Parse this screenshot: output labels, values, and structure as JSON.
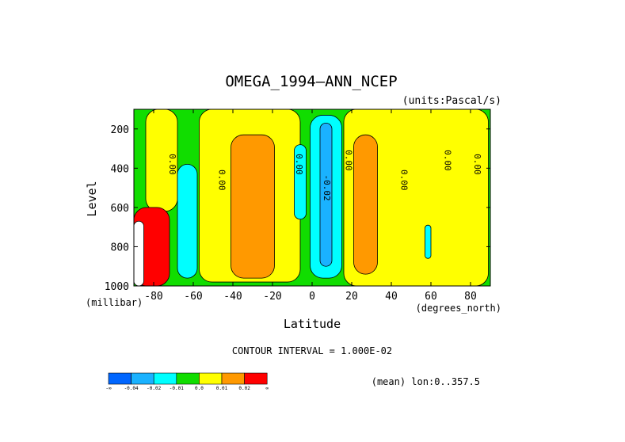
{
  "chart_data": {
    "type": "heatmap",
    "subtype": "filled-contour",
    "title": "OMEGA_1994—ANN_NCEP",
    "units_label": "(units:Pascal/s)",
    "xlabel": "Latitude",
    "ylabel": "Level",
    "x_unit_label": "(degrees_north)",
    "y_unit_label": "(millibar)",
    "xlim": [
      -90,
      90
    ],
    "ylim": [
      1000,
      100
    ],
    "y_inverted": true,
    "x_ticks": [
      -80,
      -60,
      -40,
      -20,
      0,
      20,
      40,
      60,
      80
    ],
    "x_tick_labels": [
      "-80",
      "-60",
      "-40",
      "-20",
      "0",
      "20",
      "40",
      "60",
      "80"
    ],
    "y_ticks": [
      200,
      400,
      600,
      800,
      1000
    ],
    "y_tick_labels": [
      "200",
      "400",
      "600",
      "800",
      "1000"
    ],
    "contour_interval_text": "CONTOUR INTERVAL = 1.000E-02",
    "footer_text": "(mean) lon:0..357.5",
    "contour_labels": [
      {
        "text": "0.00",
        "lat": -72,
        "level": 380
      },
      {
        "text": "0.00",
        "lat": -47,
        "level": 460
      },
      {
        "text": "0.00",
        "lat": -8,
        "level": 380
      },
      {
        "text": "0.00",
        "lat": 17,
        "level": 360
      },
      {
        "text": "-0.02",
        "lat": 6,
        "level": 500
      },
      {
        "text": "0.00",
        "lat": 45,
        "level": 460
      },
      {
        "text": "0.00",
        "lat": 67,
        "level": 360
      },
      {
        "text": "0.00",
        "lat": 82,
        "level": 380
      }
    ],
    "colorbar": {
      "bins": [
        {
          "color": "#0066ff",
          "label": "-∞"
        },
        {
          "color": "#1ab2ff",
          "label": "-0.04"
        },
        {
          "color": "#00ffff",
          "label": "-0.02"
        },
        {
          "color": "#11dd00",
          "label": "-0.01"
        },
        {
          "color": "#ffff00",
          "label": "0.0"
        },
        {
          "color": "#ff9900",
          "label": "0.01"
        },
        {
          "color": "#ff0000",
          "label": "0.02"
        }
      ],
      "end_label": "∞"
    },
    "regions": [
      {
        "value_range": "-0.01..0.0",
        "color": "#11dd00",
        "lat": [
          -90,
          90
        ],
        "level": [
          100,
          1000
        ]
      },
      {
        "value_range": "0.0..0.01",
        "color": "#ffff00",
        "lat": [
          -84,
          -68
        ],
        "level": [
          100,
          620
        ]
      },
      {
        "value_range": "-0.02..-0.01",
        "color": "#00ffff",
        "lat": [
          -68,
          -58
        ],
        "level": [
          380,
          960
        ]
      },
      {
        "value_range": "0.0..0.01",
        "color": "#ffff00",
        "lat": [
          -57,
          -6
        ],
        "level": [
          100,
          980
        ]
      },
      {
        "value_range": "0.01..0.02",
        "color": "#ff9900",
        "lat": [
          -41,
          -19
        ],
        "level": [
          230,
          960
        ]
      },
      {
        "value_range": "-0.02..-0.01",
        "color": "#00ffff",
        "lat": [
          -9,
          -3
        ],
        "level": [
          280,
          660
        ]
      },
      {
        "value_range": "-0.02..-0.01",
        "color": "#00ffff",
        "lat": [
          -1,
          15
        ],
        "level": [
          130,
          960
        ]
      },
      {
        "value_range": "-0.04..-0.02",
        "color": "#1ab2ff",
        "lat": [
          4,
          10
        ],
        "level": [
          170,
          900
        ]
      },
      {
        "value_range": "0.0..0.01",
        "color": "#ffff00",
        "lat": [
          16,
          89
        ],
        "level": [
          100,
          1000
        ]
      },
      {
        "value_range": "0.01..0.02",
        "color": "#ff9900",
        "lat": [
          21,
          33
        ],
        "level": [
          230,
          940
        ]
      },
      {
        "value_range": "-0.02..-0.01",
        "color": "#00ffff",
        "lat": [
          57,
          60
        ],
        "level": [
          690,
          860
        ]
      },
      {
        "value_range": ">0.02",
        "color": "#ff0000",
        "lat": [
          -90,
          -72
        ],
        "level": [
          600,
          1000
        ]
      },
      {
        "value_range": "missing",
        "color": "#ffffff",
        "lat": [
          -90,
          -85
        ],
        "level": [
          670,
          1000
        ]
      }
    ]
  }
}
